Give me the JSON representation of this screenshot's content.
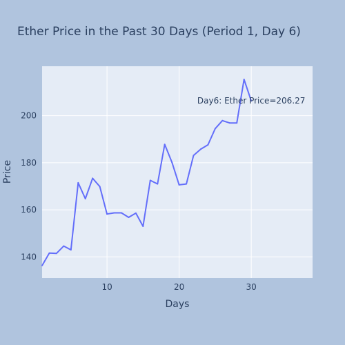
{
  "chart_data": {
    "type": "line",
    "title": "Ether Price in the Past 30 Days (Period 1, Day 6)",
    "xlabel": "Days",
    "ylabel": "Price",
    "xlim": [
      1,
      38.5
    ],
    "ylim": [
      131,
      221
    ],
    "x_ticks": [
      10,
      20,
      30
    ],
    "y_ticks": [
      140,
      160,
      180,
      200
    ],
    "grid": true,
    "series": [
      {
        "color": "#636efa",
        "x": [
          1,
          2,
          3,
          4,
          5,
          6,
          7,
          8,
          9,
          10,
          11,
          12,
          13,
          14,
          15,
          16,
          17,
          18,
          19,
          20,
          21,
          22,
          23,
          24,
          25,
          26,
          27,
          28,
          29,
          30
        ],
        "values": [
          136.3,
          141.6,
          141.5,
          144.6,
          143.0,
          171.5,
          164.7,
          173.4,
          169.9,
          158.2,
          158.7,
          158.7,
          156.8,
          158.6,
          153.0,
          172.5,
          171.0,
          187.8,
          180.2,
          170.6,
          171.0,
          183.1,
          185.8,
          187.6,
          194.5,
          197.9,
          196.9,
          196.9,
          215.4,
          206.27
        ]
      }
    ],
    "annotation": {
      "text": "Day6: Ether Price=206.27",
      "x": 30,
      "y": 206.27
    }
  }
}
